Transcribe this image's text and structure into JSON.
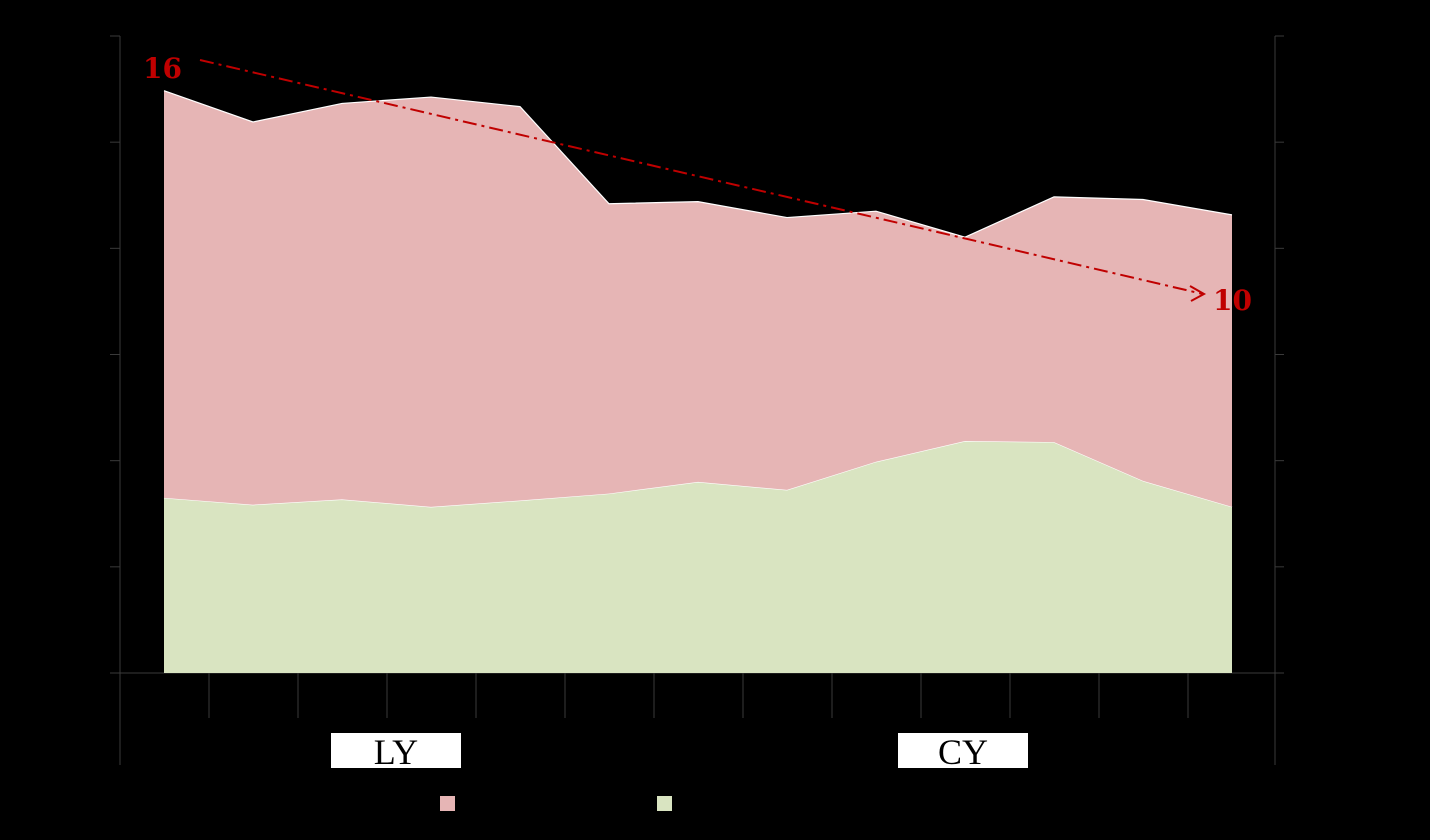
{
  "chart_data": {
    "type": "area",
    "stacked": true,
    "x": [
      1,
      2,
      3,
      4,
      5,
      6,
      7,
      8,
      9,
      10,
      11,
      12,
      13
    ],
    "series": [
      {
        "values": [
          3.3,
          3.17,
          3.27,
          3.13,
          3.25,
          3.38,
          3.6,
          3.45,
          3.98,
          4.37,
          4.35,
          3.62,
          3.13
        ],
        "color": "#d9e4c1"
      },
      {
        "values": [
          7.67,
          7.21,
          7.46,
          7.72,
          7.42,
          5.46,
          5.28,
          5.13,
          4.72,
          3.84,
          4.62,
          5.3,
          5.5
        ],
        "color": "#e6b5b5"
      }
    ],
    "ylim": [
      0,
      12
    ],
    "grid": false,
    "period_labels": [
      "LY",
      "CY"
    ],
    "annotations": {
      "start_value": "16",
      "end_value": "10",
      "trend_color": "#c00000"
    }
  }
}
